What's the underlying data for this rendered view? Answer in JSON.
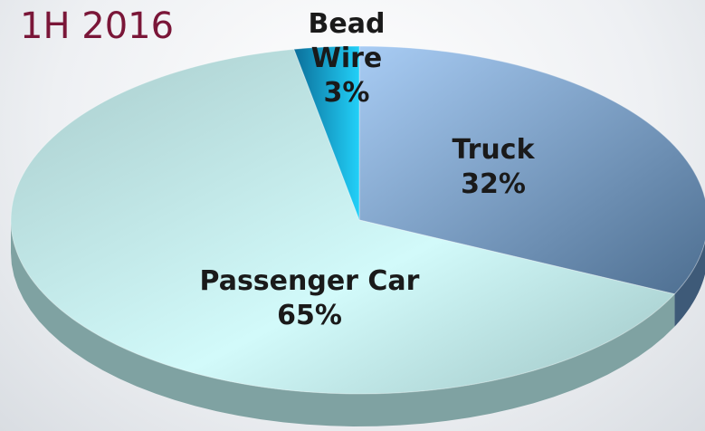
{
  "chart_data": {
    "type": "pie",
    "title": "1H 2016",
    "categories": [
      "Truck",
      "Passenger Car",
      "Bead Wire"
    ],
    "values": [
      32,
      65,
      3
    ],
    "value_labels": [
      "32%",
      "65%",
      "3%"
    ],
    "colors": [
      "#8fb6e4",
      "#bfeeee",
      "#1ec6f0"
    ],
    "three_d": true
  }
}
